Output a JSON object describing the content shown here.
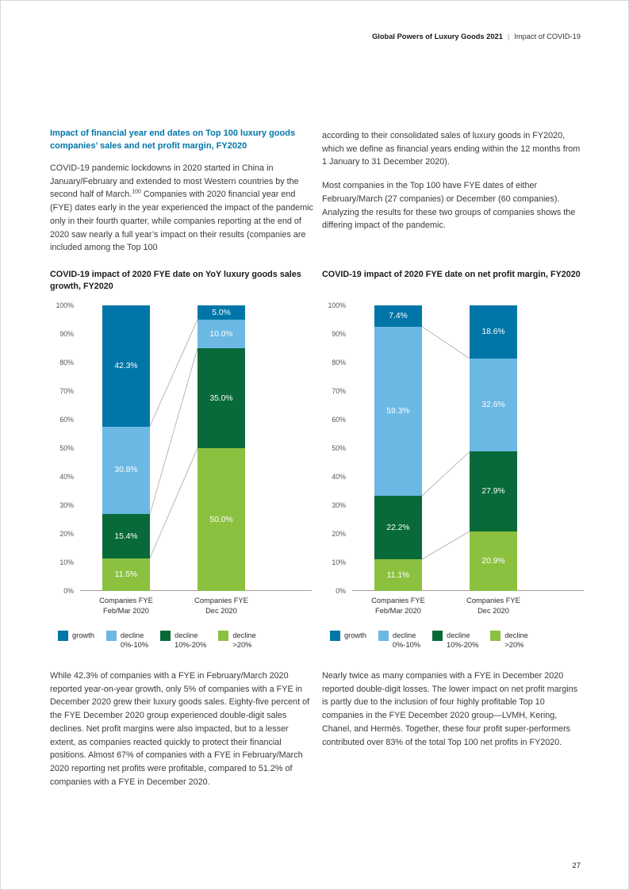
{
  "header": {
    "bold": "Global Powers of Luxury Goods 2021",
    "divider": "|",
    "rest": "Impact of COVID-19"
  },
  "intro": {
    "heading": "Impact of financial year end dates on Top 100 luxury goods companies’ sales and net profit margin, FY2020",
    "left": {
      "p1_pre": "COVID-19 pandemic lockdowns in 2020 started in China in January/February and extended to most Western countries by the second half of March.",
      "p1_sup": "100",
      "p1_post": " Companies with 2020 financial year end (FYE) dates early in the year experienced the impact of the pandemic only in their fourth quarter, while companies reporting at the end of 2020 saw nearly a full year’s impact on their results (companies are included among the Top 100"
    },
    "right": {
      "p1": "according to their consolidated sales of luxury goods in FY2020, which we define as financial years ending within the 12 months from 1 January to 31 December 2020).",
      "p2": "Most companies in the Top 100 have FYE dates of either February/March (27 companies) or December (60 companies). Analyzing the results for these two groups of companies shows the differing impact of the pandemic."
    }
  },
  "chart_data": [
    {
      "type": "bar",
      "stacked": true,
      "title": "COVID-19 impact of 2020 FYE date on YoY luxury goods sales growth, FY2020",
      "categories": [
        "Companies FYE Feb/Mar 2020",
        "Companies FYE Dec 2020"
      ],
      "category_lines": [
        [
          "Companies FYE",
          "Feb/Mar 2020"
        ],
        [
          "Companies FYE",
          "Dec 2020"
        ]
      ],
      "series": [
        {
          "name": "growth",
          "color": "#0076A8",
          "values": [
            42.3,
            5.0
          ]
        },
        {
          "name": "decline 0%-10%",
          "color": "#6BB8E4",
          "values": [
            30.8,
            10.0
          ]
        },
        {
          "name": "decline 10%-20%",
          "color": "#086A38",
          "values": [
            15.4,
            35.0
          ]
        },
        {
          "name": "decline >20%",
          "color": "#8CC140",
          "values": [
            11.5,
            50.0
          ]
        }
      ],
      "legend": [
        [
          "growth",
          ""
        ],
        [
          "decline",
          "0%-10%"
        ],
        [
          "decline",
          "10%-20%"
        ],
        [
          "decline",
          ">20%"
        ]
      ],
      "ylim": [
        0,
        100
      ],
      "ytick_step": 10,
      "yaxis_format": "percent",
      "grid": false,
      "legend_position": "bottom"
    },
    {
      "type": "bar",
      "stacked": true,
      "title": "COVID-19 impact of 2020 FYE date on net profit margin, FY2020",
      "categories": [
        "Companies FYE Feb/Mar 2020",
        "Companies FYE Dec 2020"
      ],
      "category_lines": [
        [
          "Companies FYE",
          "Feb/Mar 2020"
        ],
        [
          "Companies FYE",
          "Dec 2020"
        ]
      ],
      "series": [
        {
          "name": "growth",
          "color": "#0076A8",
          "values": [
            7.4,
            18.6
          ]
        },
        {
          "name": "decline 0%-10%",
          "color": "#6BB8E4",
          "values": [
            59.3,
            32.6
          ]
        },
        {
          "name": "decline 10%-20%",
          "color": "#086A38",
          "values": [
            22.2,
            27.9
          ]
        },
        {
          "name": "decline >20%",
          "color": "#8CC140",
          "values": [
            11.1,
            20.9
          ]
        }
      ],
      "legend": [
        [
          "growth",
          ""
        ],
        [
          "decline",
          "0%-10%"
        ],
        [
          "decline",
          "10%-20%"
        ],
        [
          "decline",
          ">20%"
        ]
      ],
      "ylim": [
        0,
        100
      ],
      "ytick_step": 10,
      "yaxis_format": "percent",
      "grid": false,
      "legend_position": "bottom"
    }
  ],
  "analysis": {
    "left": "While 42.3% of companies with a FYE in February/March 2020 reported year-on-year growth, only 5% of companies with a FYE in December 2020 grew their luxury goods sales. Eighty-five percent of the FYE December 2020 group experienced double-digit sales declines. Net profit margins were also impacted, but to a lesser extent, as companies reacted quickly to protect their financial positions. Almost 67% of companies with a FYE in February/March 2020 reporting net profits were profitable, compared to 51.2% of companies with a FYE in December 2020.",
    "right": "Nearly twice as many companies with a FYE in December 2020 reported double-digit losses. The lower impact on net profit margins is partly due to the inclusion of four highly profitable Top 10 companies in the FYE December 2020 group—LVMH, Kering, Chanel, and Hermès. Together, these four profit super-performers contributed over 83% of the total Top 100 net profits in FY2020.",
    "left_highlights": [
      "42.3%",
      "5%",
      "85%",
      "67%",
      "51.2%"
    ],
    "right_highlights": [
      "83%"
    ]
  },
  "page_number": "27",
  "colors": {
    "heading_accent": "#0076A8",
    "growth": "#0076A8",
    "decline_0_10": "#6BB8E4",
    "decline_10_20": "#086A38",
    "decline_over_20": "#8CC140",
    "axis_text": "#555555",
    "baseline": "#A0A0A0",
    "connector_line": "#B8B8B8"
  }
}
